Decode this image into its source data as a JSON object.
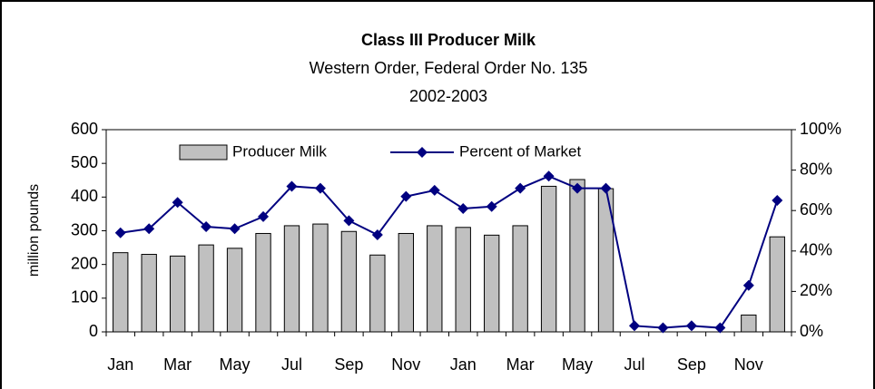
{
  "chart_data": {
    "type": "bar",
    "title": "Class III Producer Milk",
    "subtitle": [
      "Western Order, Federal Order No. 135",
      "2002-2003"
    ],
    "y_label": "million pounds",
    "categories": [
      "Jan",
      null,
      "Mar",
      null,
      "May",
      null,
      "Jul",
      null,
      "Sep",
      null,
      "Nov",
      null,
      "Jan",
      null,
      "Mar",
      null,
      "May",
      null,
      "Jul",
      null,
      "Sep",
      null,
      "Nov",
      null
    ],
    "series": [
      {
        "name": "Producer Milk",
        "type": "bar",
        "color": "#c0c0c0",
        "axis": "y",
        "values": [
          235,
          230,
          225,
          258,
          248,
          292,
          315,
          320,
          298,
          228,
          292,
          315,
          310,
          287,
          315,
          432,
          452,
          425,
          0,
          0,
          0,
          0,
          50,
          282
        ]
      },
      {
        "name": "Percent of Market",
        "type": "line",
        "color": "#000080",
        "axis": "y2",
        "values": [
          49,
          51,
          64,
          52,
          51,
          57,
          72,
          71,
          55,
          48,
          67,
          70,
          61,
          62,
          71,
          77,
          71,
          71,
          3,
          2,
          3,
          2,
          23,
          65
        ]
      }
    ],
    "ylim": [
      0,
      600
    ],
    "yticks": [
      0,
      100,
      200,
      300,
      400,
      500,
      600
    ],
    "y2lim": [
      0,
      100
    ],
    "y2ticks": [
      {
        "value": 0,
        "label": "0%"
      },
      {
        "value": 20,
        "label": "20%"
      },
      {
        "value": 40,
        "label": "40%"
      },
      {
        "value": 60,
        "label": "60%"
      },
      {
        "value": 80,
        "label": "80%"
      },
      {
        "value": 100,
        "label": "100%"
      }
    ],
    "legend": "top"
  }
}
